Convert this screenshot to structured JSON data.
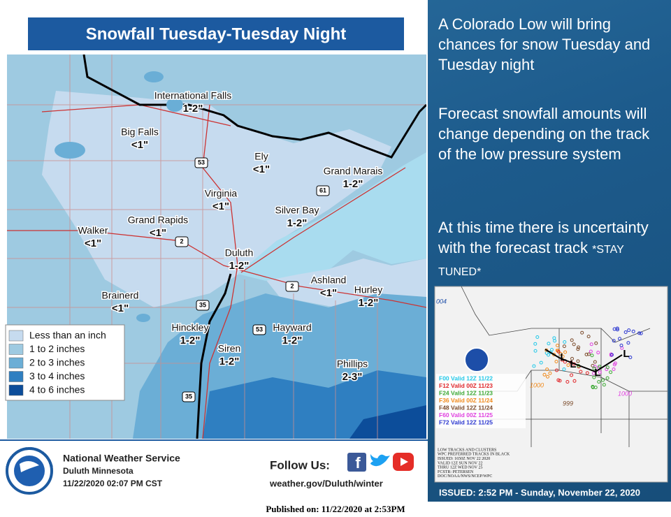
{
  "title": "Snowfall Tuesday-Tuesday Night",
  "map": {
    "places": [
      {
        "name": "International Falls",
        "amount": "1-2\""
      },
      {
        "name": "Big Falls",
        "amount": "<1\""
      },
      {
        "name": "Ely",
        "amount": "<1\""
      },
      {
        "name": "Grand Marais",
        "amount": "1-2\""
      },
      {
        "name": "Virginia",
        "amount": "<1\""
      },
      {
        "name": "Silver Bay",
        "amount": "1-2\""
      },
      {
        "name": "Grand Rapids",
        "amount": "<1\""
      },
      {
        "name": "Walker",
        "amount": "<1\""
      },
      {
        "name": "Duluth",
        "amount": "1-2\""
      },
      {
        "name": "Ashland",
        "amount": "<1\""
      },
      {
        "name": "Hurley",
        "amount": "1-2\""
      },
      {
        "name": "Brainerd",
        "amount": "<1\""
      },
      {
        "name": "Hinckley",
        "amount": "1-2\""
      },
      {
        "name": "Hayward",
        "amount": "1-2\""
      },
      {
        "name": "Siren",
        "amount": "1-2\""
      },
      {
        "name": "Phillips",
        "amount": "2-3\""
      }
    ],
    "highways": [
      "53",
      "61",
      "2",
      "2",
      "35",
      "53",
      "35"
    ],
    "legend": [
      {
        "label": "Less than an inch",
        "color": "#c6dbef"
      },
      {
        "label": "1 to 2 inches",
        "color": "#9ecae1"
      },
      {
        "label": "2 to 3 inches",
        "color": "#6baed6"
      },
      {
        "label": "3 to 4 inches",
        "color": "#2f7fc1"
      },
      {
        "label": "4 to 6 inches",
        "color": "#0c4d9a"
      }
    ]
  },
  "footer": {
    "org": "National Weather Service",
    "office": "Duluth Minnesota",
    "timestamp": "11/22/2020 02:07 PM CST",
    "follow": "Follow Us:",
    "url": "weather.gov/Duluth/winter",
    "logo_text": "NATIONAL WEATHER SERVICE"
  },
  "published": "Published on: 11/22/2020 at 2:53PM",
  "sidebar": {
    "paragraphs": [
      "A Colorado Low will bring chances for snow Tuesday and Tuesday night",
      "Forecast snowfall amounts will change depending on the track of the low pressure system",
      "At this time there is uncertainty with the forecast track "
    ],
    "tag": "*STAY TUNED*",
    "issued": "ISSUED: 2:52 PM - Sunday, November 22, 2020"
  },
  "inset": {
    "legend": [
      {
        "label": "F00 Valid 12Z 11/22",
        "color": "#22c8e8"
      },
      {
        "label": "F12 Valid 00Z 11/23",
        "color": "#e0262a"
      },
      {
        "label": "F24 Valid 12Z 11/23",
        "color": "#3aa832"
      },
      {
        "label": "F36 Valid 00Z 11/24",
        "color": "#f08a1c"
      },
      {
        "label": "F48 Valid 12Z 11/24",
        "color": "#7a4a2a"
      },
      {
        "label": "F60 Valid 00Z 11/25",
        "color": "#e040e0"
      },
      {
        "label": "F72 Valid 12Z 11/25",
        "color": "#2a36d0"
      }
    ],
    "isobars": [
      "004",
      "1000",
      "999",
      "1000"
    ],
    "low": "L",
    "notes": [
      "LOW TRACKS AND CLUSTERS",
      "WPC PREFERRED TRACKS IN BLACK",
      "ISSUED: 1650Z NOV 22 2020",
      "VALID 12Z SUN NOV 22",
      "THRU 12Z WED NOV 25",
      "FCSTR: PETERSEN",
      "DOC/NOAA/NWS/NCEP/WPC"
    ]
  }
}
